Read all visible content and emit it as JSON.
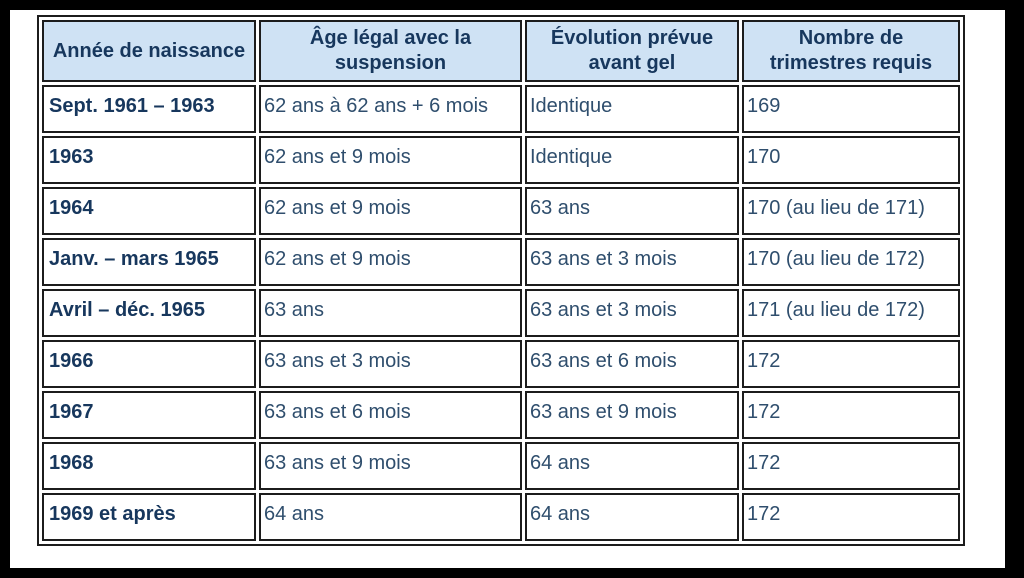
{
  "table": {
    "headers": [
      "Année de naissance",
      "Âge légal avec la suspension",
      "Évolution prévue avant gel",
      "Nombre de trimestres requis"
    ],
    "rows": [
      {
        "birth_year": "Sept. 1961 – 1963",
        "legal_age_with_suspension": "62 ans à 62 ans + 6 mois",
        "planned_evolution_before_freeze": "Identique",
        "quarters_required": "169"
      },
      {
        "birth_year": "1963",
        "legal_age_with_suspension": "62 ans et 9 mois",
        "planned_evolution_before_freeze": "Identique",
        "quarters_required": "170"
      },
      {
        "birth_year": "1964",
        "legal_age_with_suspension": "62 ans et 9 mois",
        "planned_evolution_before_freeze": "63 ans",
        "quarters_required": "170 (au lieu de 171)"
      },
      {
        "birth_year": "Janv. – mars 1965",
        "legal_age_with_suspension": "62 ans et 9 mois",
        "planned_evolution_before_freeze": "63 ans et 3 mois",
        "quarters_required": "170 (au lieu de 172)"
      },
      {
        "birth_year": "Avril – déc. 1965",
        "legal_age_with_suspension": "63 ans",
        "planned_evolution_before_freeze": "63 ans et 3 mois",
        "quarters_required": "171 (au lieu de 172)"
      },
      {
        "birth_year": "1966",
        "legal_age_with_suspension": "63 ans et 3 mois",
        "planned_evolution_before_freeze": "63 ans et 6 mois",
        "quarters_required": "172"
      },
      {
        "birth_year": "1967",
        "legal_age_with_suspension": "63 ans et 6 mois",
        "planned_evolution_before_freeze": "63 ans et 9 mois",
        "quarters_required": "172"
      },
      {
        "birth_year": "1968",
        "legal_age_with_suspension": "63 ans et 9 mois",
        "planned_evolution_before_freeze": "64 ans",
        "quarters_required": "172"
      },
      {
        "birth_year": "1969 et après",
        "legal_age_with_suspension": "64 ans",
        "planned_evolution_before_freeze": "64 ans",
        "quarters_required": "172"
      }
    ]
  },
  "colors": {
    "frame": "#000000",
    "header_bg": "#cfe2f4",
    "header_text": "#17375d",
    "body_text": "#2f4e6d",
    "cell_border": "#1c1c1c",
    "page_bg": "#ffffff"
  }
}
